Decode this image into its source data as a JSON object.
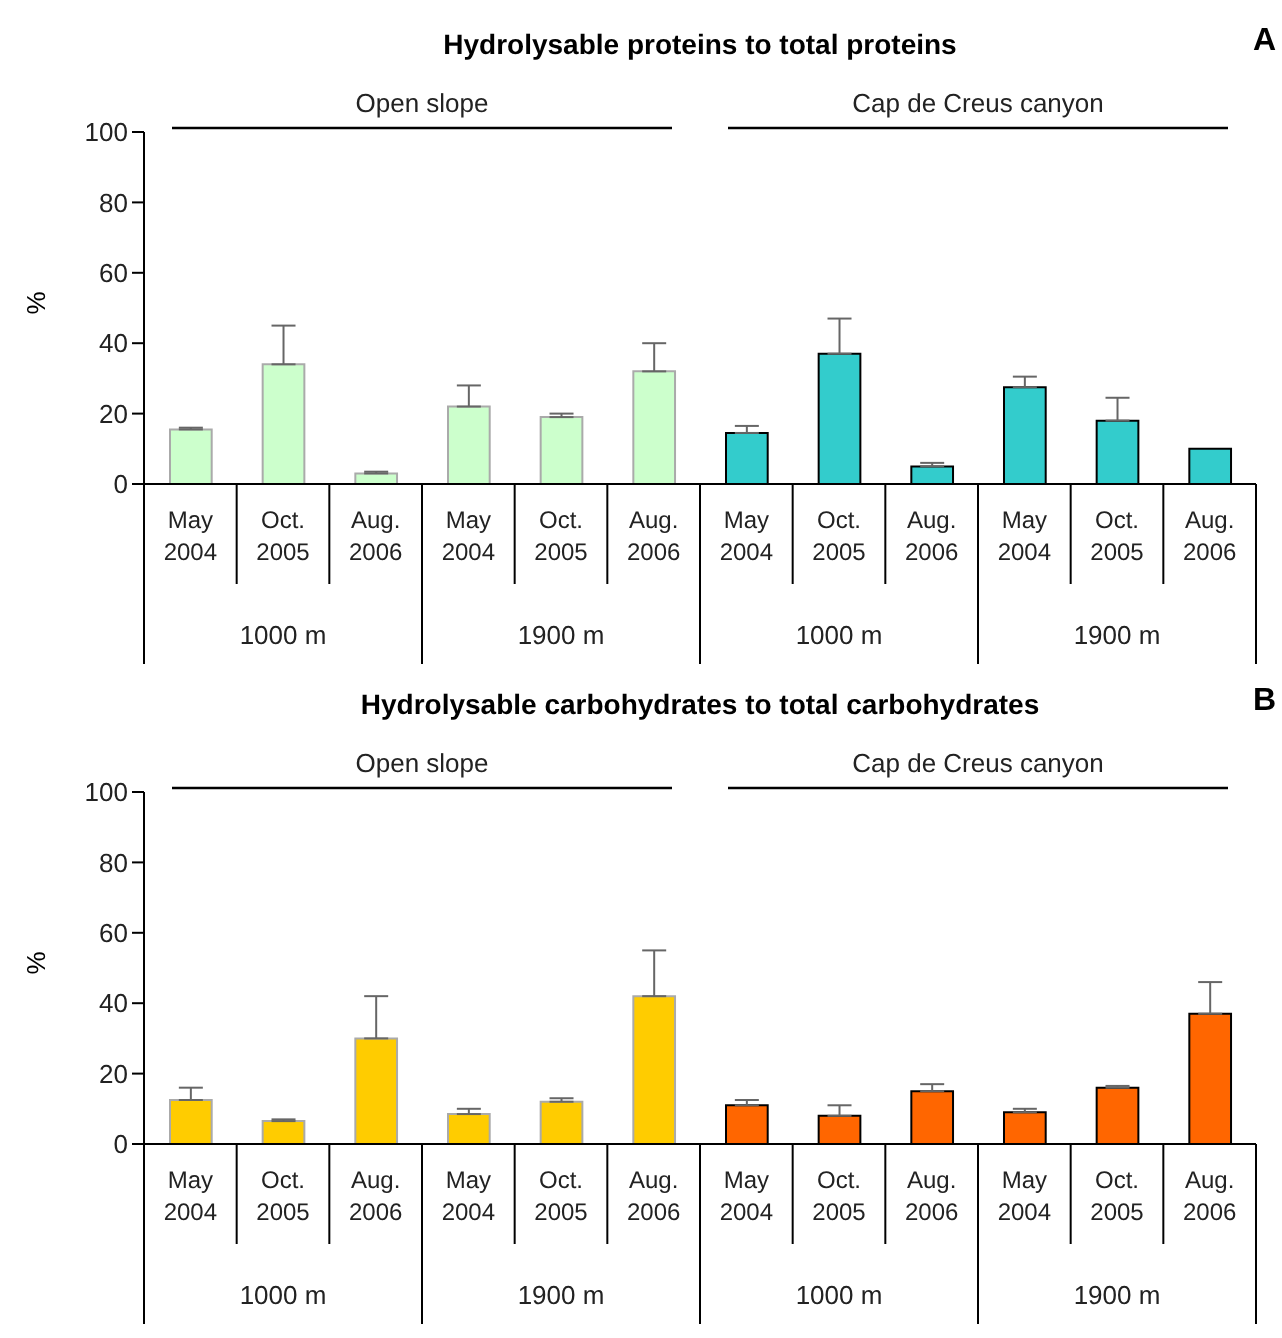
{
  "chart_data": [
    {
      "type": "bar",
      "title": "Hydrolysable proteins to total proteins",
      "ylabel": "%",
      "categories": [
        "May 2004",
        "Oct. 2005",
        "Aug. 2006",
        "May 2004",
        "Oct. 2005",
        "Aug. 2006",
        "May 2004",
        "Oct. 2005",
        "Aug. 2006",
        "May 2004",
        "Oct. 2005",
        "Aug. 2006"
      ],
      "values": [
        15.5,
        34,
        3,
        22,
        19,
        32,
        14.5,
        37,
        5,
        27.5,
        18,
        10
      ],
      "colors": [
        "#ccffcc",
        "#ccffcc",
        "#ccffcc",
        "#ccffcc",
        "#ccffcc",
        "#ccffcc",
        "#33cccc",
        "#33cccc",
        "#33cccc",
        "#33cccc",
        "#33cccc",
        "#33cccc"
      ],
      "errors": [
        [
          15.5,
          16
        ],
        [
          34,
          45
        ],
        [
          3,
          3.5
        ],
        [
          22,
          28
        ],
        [
          19,
          20
        ],
        [
          32,
          40
        ],
        [
          14.5,
          16.5
        ],
        [
          37,
          47
        ],
        [
          5,
          6
        ],
        [
          27.5,
          30.5
        ],
        [
          18,
          24.5
        ],
        null
      ],
      "ylim": [
        0,
        100
      ],
      "yticks": [
        0,
        20,
        40,
        60,
        80,
        100
      ],
      "annotations": [
        "Open slope",
        "Cap de Creus canyon",
        "1000 m",
        "1900 m",
        "1000 m",
        "1900 m",
        "A"
      ]
    },
    {
      "type": "bar",
      "title": "Hydrolysable carbohydrates to total carbohydrates",
      "ylabel": "%",
      "categories": [
        "May 2004",
        "Oct. 2005",
        "Aug. 2006",
        "May 2004",
        "Oct. 2005",
        "Aug. 2006",
        "May 2004",
        "Oct. 2005",
        "Aug. 2006",
        "May 2004",
        "Oct. 2005",
        "Aug. 2006"
      ],
      "values": [
        12.5,
        6.5,
        30,
        8.5,
        12,
        42,
        11,
        8,
        15,
        9,
        16,
        37
      ],
      "colors": [
        "#ffcc00",
        "#ffcc00",
        "#ffcc00",
        "#ffcc00",
        "#ffcc00",
        "#ffcc00",
        "#ff6600",
        "#ff6600",
        "#ff6600",
        "#ff6600",
        "#ff6600",
        "#ff6600"
      ],
      "errors": [
        [
          12.5,
          16
        ],
        [
          6.5,
          7
        ],
        [
          30,
          42
        ],
        [
          8.5,
          10
        ],
        [
          12,
          13
        ],
        [
          42,
          55
        ],
        [
          11,
          12.5
        ],
        [
          8,
          11
        ],
        [
          15,
          17
        ],
        [
          9,
          10
        ],
        [
          16,
          16.5
        ],
        [
          37,
          46
        ]
      ],
      "ylim": [
        0,
        100
      ],
      "yticks": [
        0,
        20,
        40,
        60,
        80,
        100
      ],
      "annotations": [
        "Open slope",
        "Cap de Creus canyon",
        "1000 m",
        "1900 m",
        "1000 m",
        "1900 m",
        "B"
      ]
    }
  ]
}
